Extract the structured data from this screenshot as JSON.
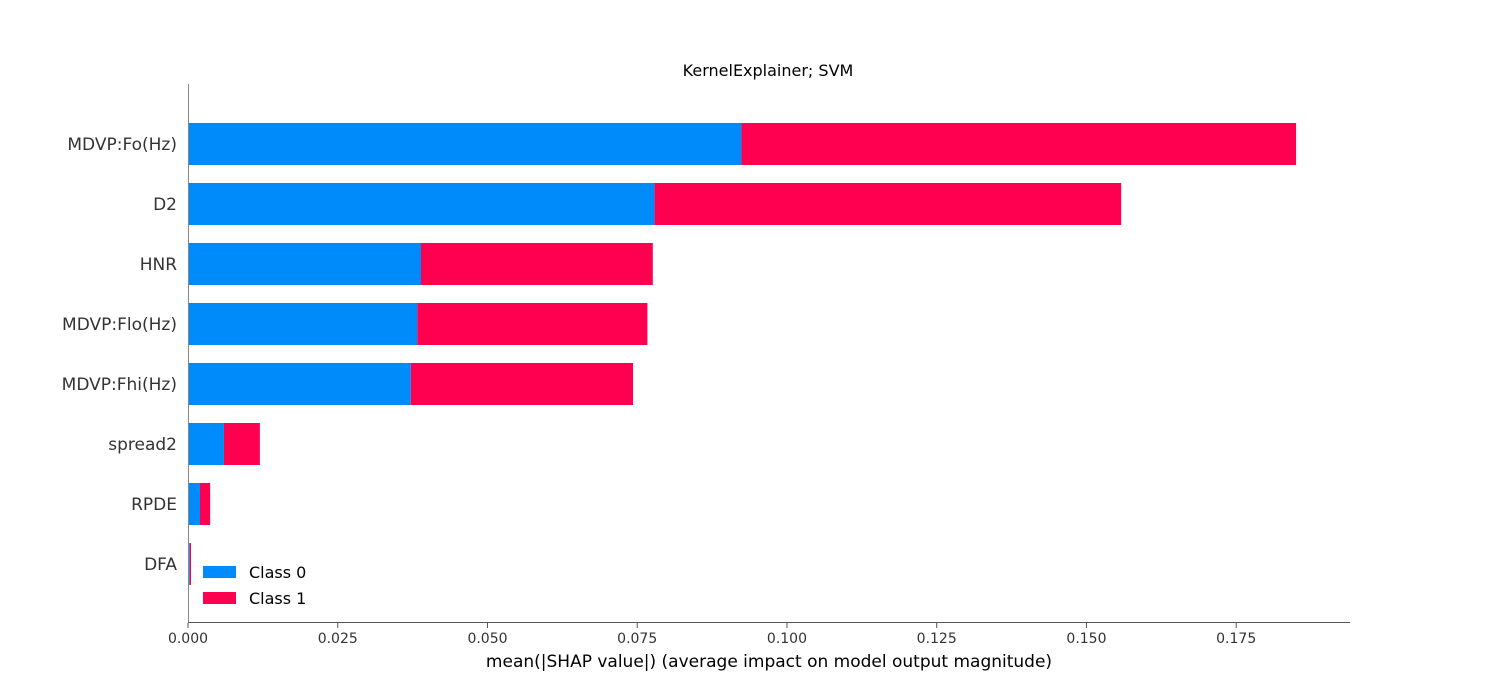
{
  "chart_data": {
    "type": "bar",
    "stacked": true,
    "orientation": "horizontal",
    "title": "KernelExplainer; SVM",
    "xlabel": "mean(|SHAP value|) (average impact on model output magnitude)",
    "ylabel": "",
    "xlim": [
      0,
      0.194
    ],
    "xticks": [
      "0.000",
      "0.025",
      "0.050",
      "0.075",
      "0.100",
      "0.125",
      "0.150",
      "0.175"
    ],
    "categories": [
      "MDVP:Fo(Hz)",
      "D2",
      "HNR",
      "MDVP:Flo(Hz)",
      "MDVP:Fhi(Hz)",
      "spread2",
      "RPDE",
      "DFA"
    ],
    "series": [
      {
        "name": "Class 0",
        "color": "#008bfb",
        "values": [
          0.0924,
          0.0779,
          0.0389,
          0.0383,
          0.0372,
          0.006,
          0.002,
          0.0003
        ]
      },
      {
        "name": "Class 1",
        "color": "#ff0051",
        "values": [
          0.0926,
          0.0779,
          0.0387,
          0.0384,
          0.0371,
          0.006,
          0.0017,
          0.0002
        ]
      }
    ],
    "legend_position": "bottom-left",
    "grid": false
  }
}
